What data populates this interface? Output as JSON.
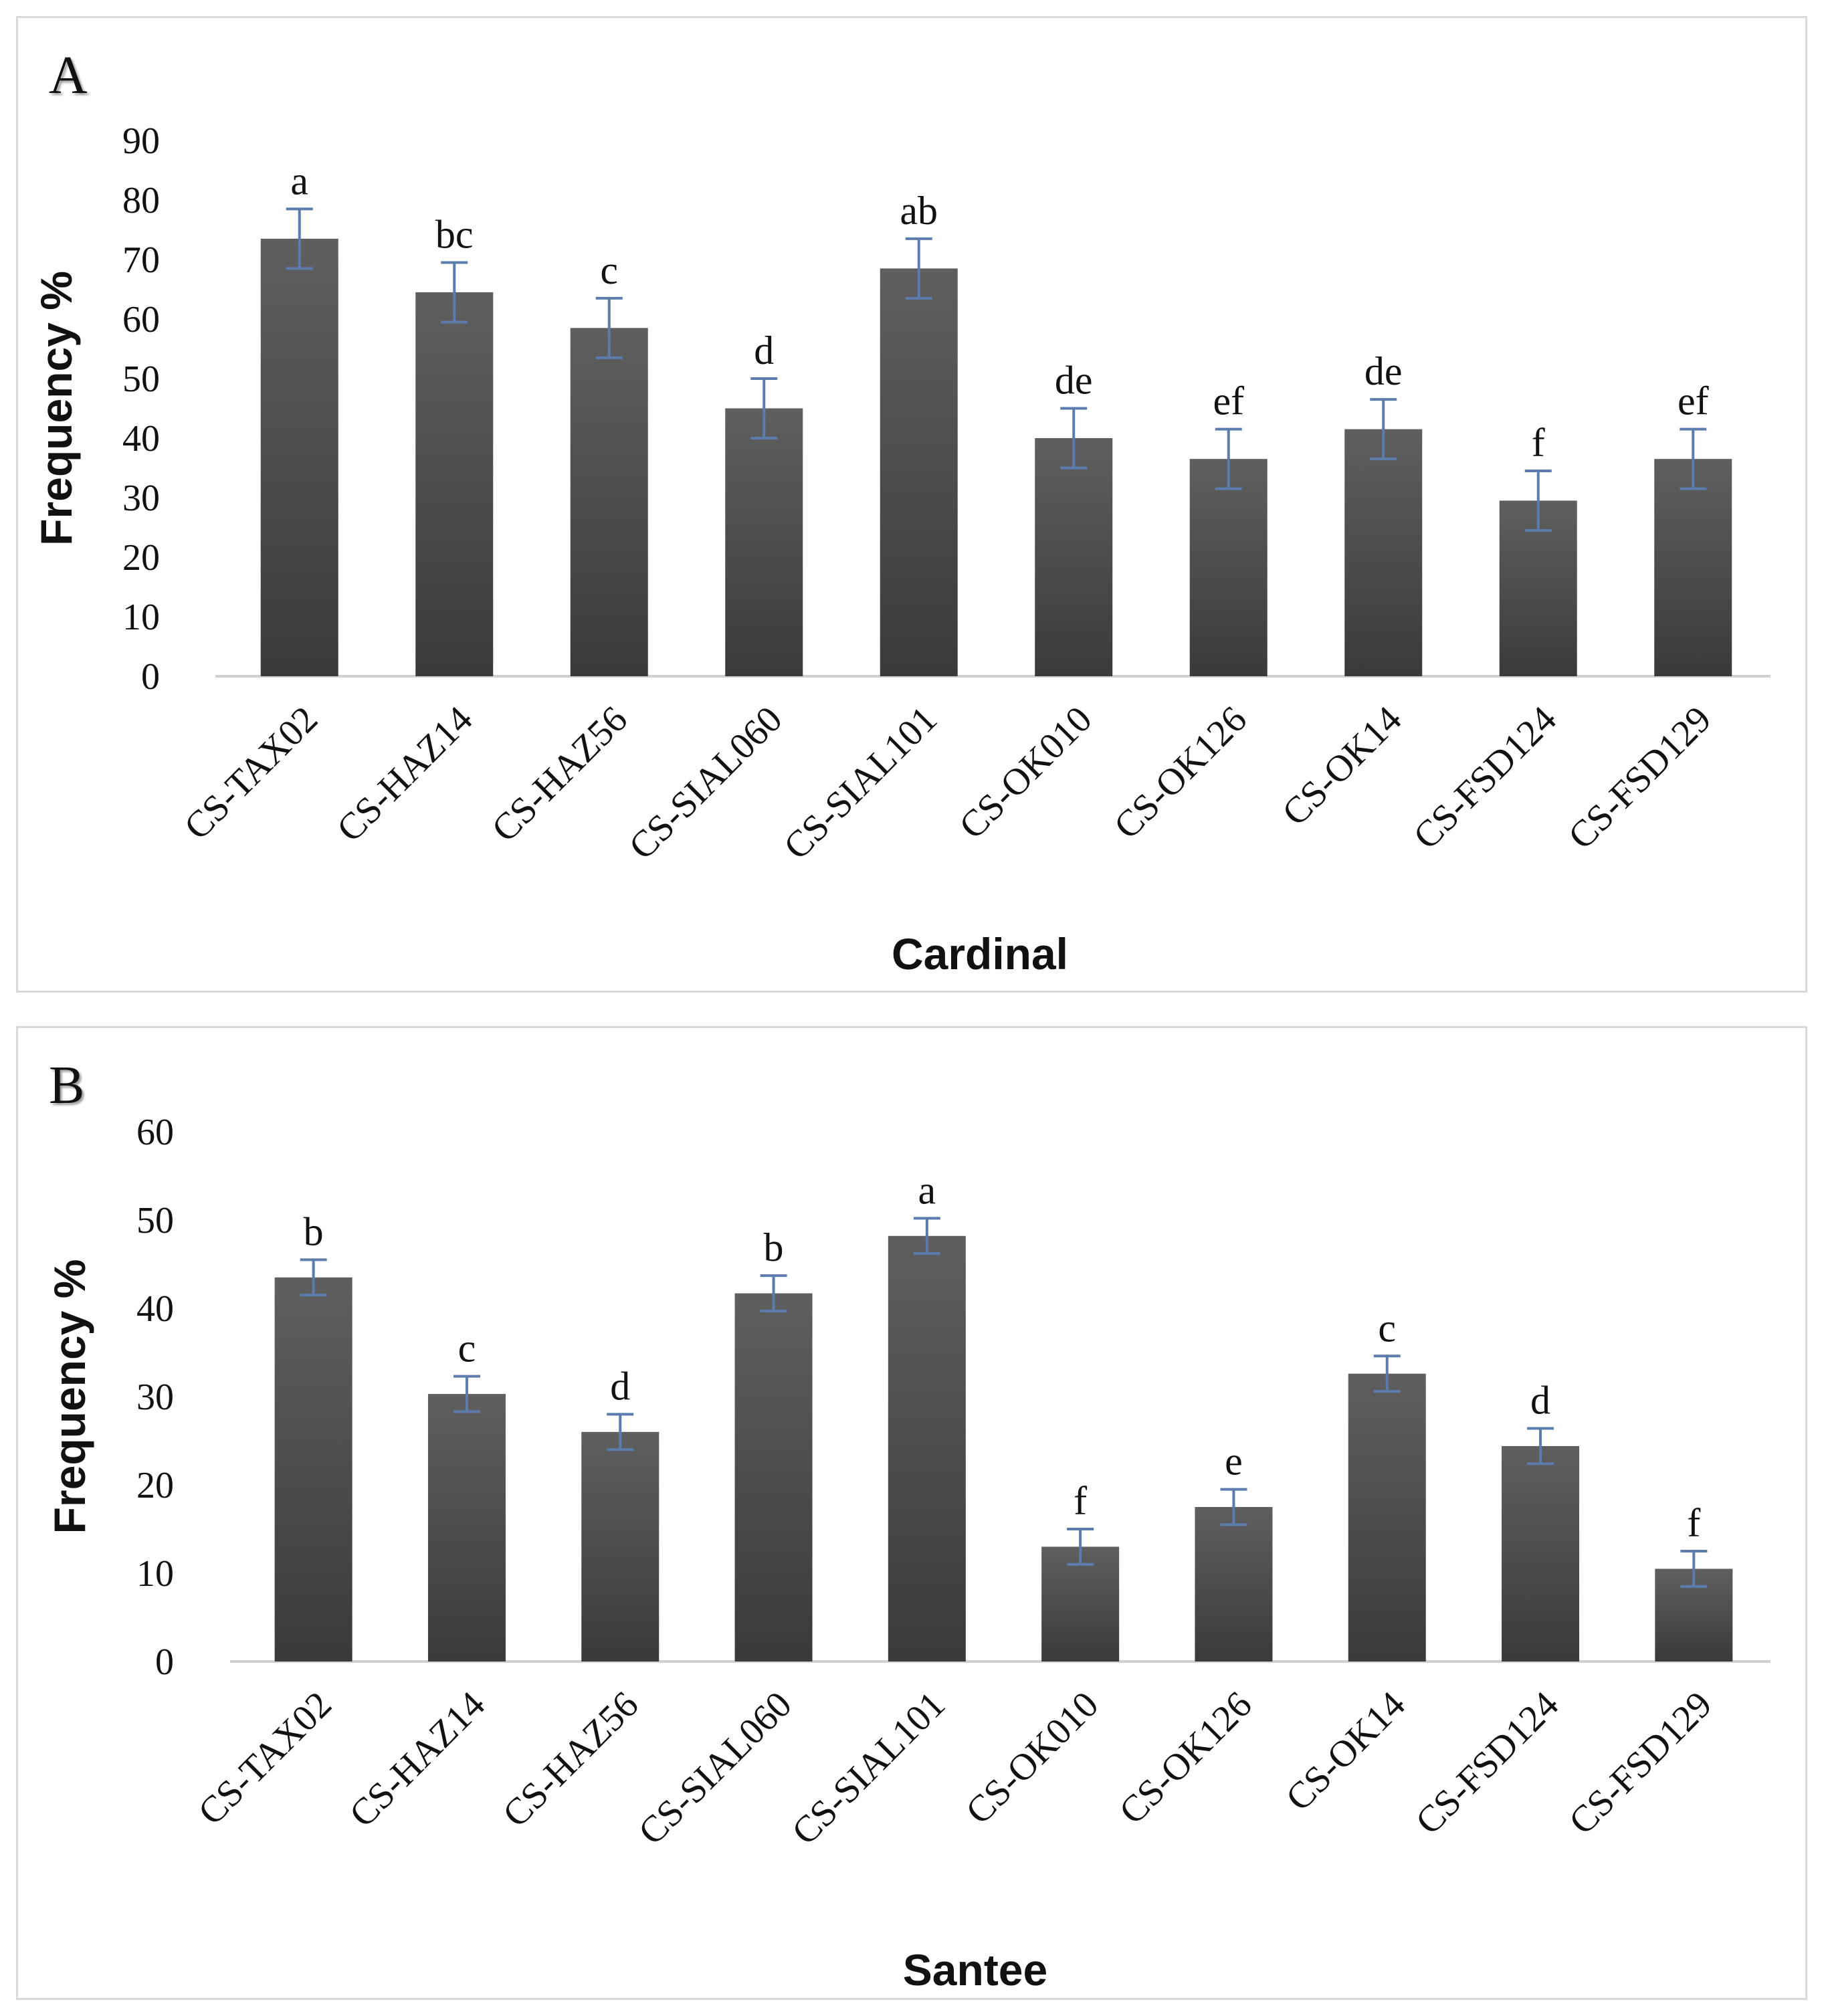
{
  "chart_data": [
    {
      "panel": "A",
      "type": "bar",
      "categories": [
        "CS-TAX02",
        "CS-HAZ14",
        "CS-HAZ56",
        "CS-SIAL060",
        "CS-SIAL101",
        "CS-OK010",
        "CS-OK126",
        "CS-OK14",
        "CS-FSD124",
        "CS-FSD129"
      ],
      "values": [
        73.5,
        64.5,
        58.5,
        45,
        68.5,
        40,
        36.5,
        41.5,
        29.5,
        36.5
      ],
      "errors": [
        5,
        5,
        5,
        5,
        5,
        5,
        5,
        5,
        5,
        5
      ],
      "significance": [
        "a",
        "bc",
        "c",
        "d",
        "ab",
        "de",
        "ef",
        "de",
        "f",
        "ef"
      ],
      "xlabel": "Cardinal",
      "ylabel": "Frequency %",
      "ylim": [
        0,
        90
      ],
      "yticks": [
        "0",
        "10",
        "20",
        "30",
        "40",
        "50",
        "60",
        "70",
        "80",
        "90"
      ],
      "grid": false,
      "colors": {
        "bar_top": "#5f5f5f",
        "bar_bottom": "#3a3a3a",
        "error_bar": "#5b7cad"
      }
    },
    {
      "panel": "B",
      "type": "bar",
      "categories": [
        "CS-TAX02",
        "CS-HAZ14",
        "CS-HAZ56",
        "CS-SIAL060",
        "CS-SIAL101",
        "CS-OK010",
        "CS-OK126",
        "CS-OK14",
        "CS-FSD124",
        "CS-FSD129"
      ],
      "values": [
        43.5,
        30.3,
        26,
        41.7,
        48.2,
        13,
        17.5,
        32.6,
        24.4,
        10.5
      ],
      "errors": [
        2,
        2,
        2,
        2,
        2,
        2,
        2,
        2,
        2,
        2
      ],
      "significance": [
        "b",
        "c",
        "d",
        "b",
        "a",
        "f",
        "e",
        "c",
        "d",
        "f"
      ],
      "xlabel": "Santee",
      "ylabel": "Frequency %",
      "ylim": [
        0,
        60
      ],
      "yticks": [
        "0",
        "10",
        "20",
        "30",
        "40",
        "50",
        "60"
      ],
      "grid": false,
      "colors": {
        "bar_top": "#5f5f5f",
        "bar_bottom": "#3a3a3a",
        "error_bar": "#5b7cad"
      }
    }
  ]
}
